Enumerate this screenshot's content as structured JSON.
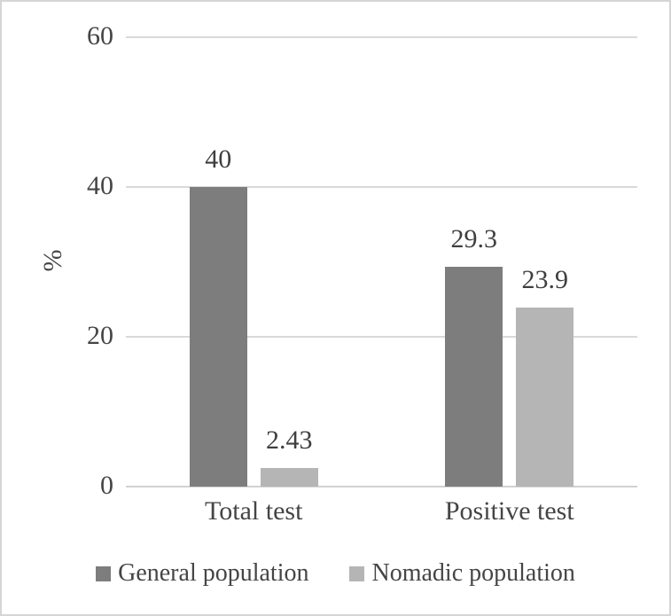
{
  "chart_data": {
    "type": "bar",
    "title": "",
    "ylabel": "%",
    "xlabel": "",
    "categories": [
      "Total test",
      "Positive test"
    ],
    "series": [
      {
        "name": "General population",
        "color": "#7d7d7d",
        "values": [
          40,
          29.3
        ],
        "value_labels": [
          "40",
          "29.3"
        ]
      },
      {
        "name": "Nomadic population",
        "color": "#b5b5b5",
        "values": [
          2.43,
          23.9
        ],
        "value_labels": [
          "2.43",
          "23.9"
        ]
      }
    ],
    "yticks": [
      "60",
      "40",
      "20",
      "0"
    ],
    "ytick_values": [
      60,
      40,
      20,
      0
    ],
    "ylim": [
      0,
      60
    ],
    "grid": true,
    "gridline_color": "#d9d9d9",
    "axis_line_color": "#d2d2d2",
    "text_color": "#454545",
    "frame_border_color": "#d5d5d5",
    "legend_position": "bottom"
  }
}
